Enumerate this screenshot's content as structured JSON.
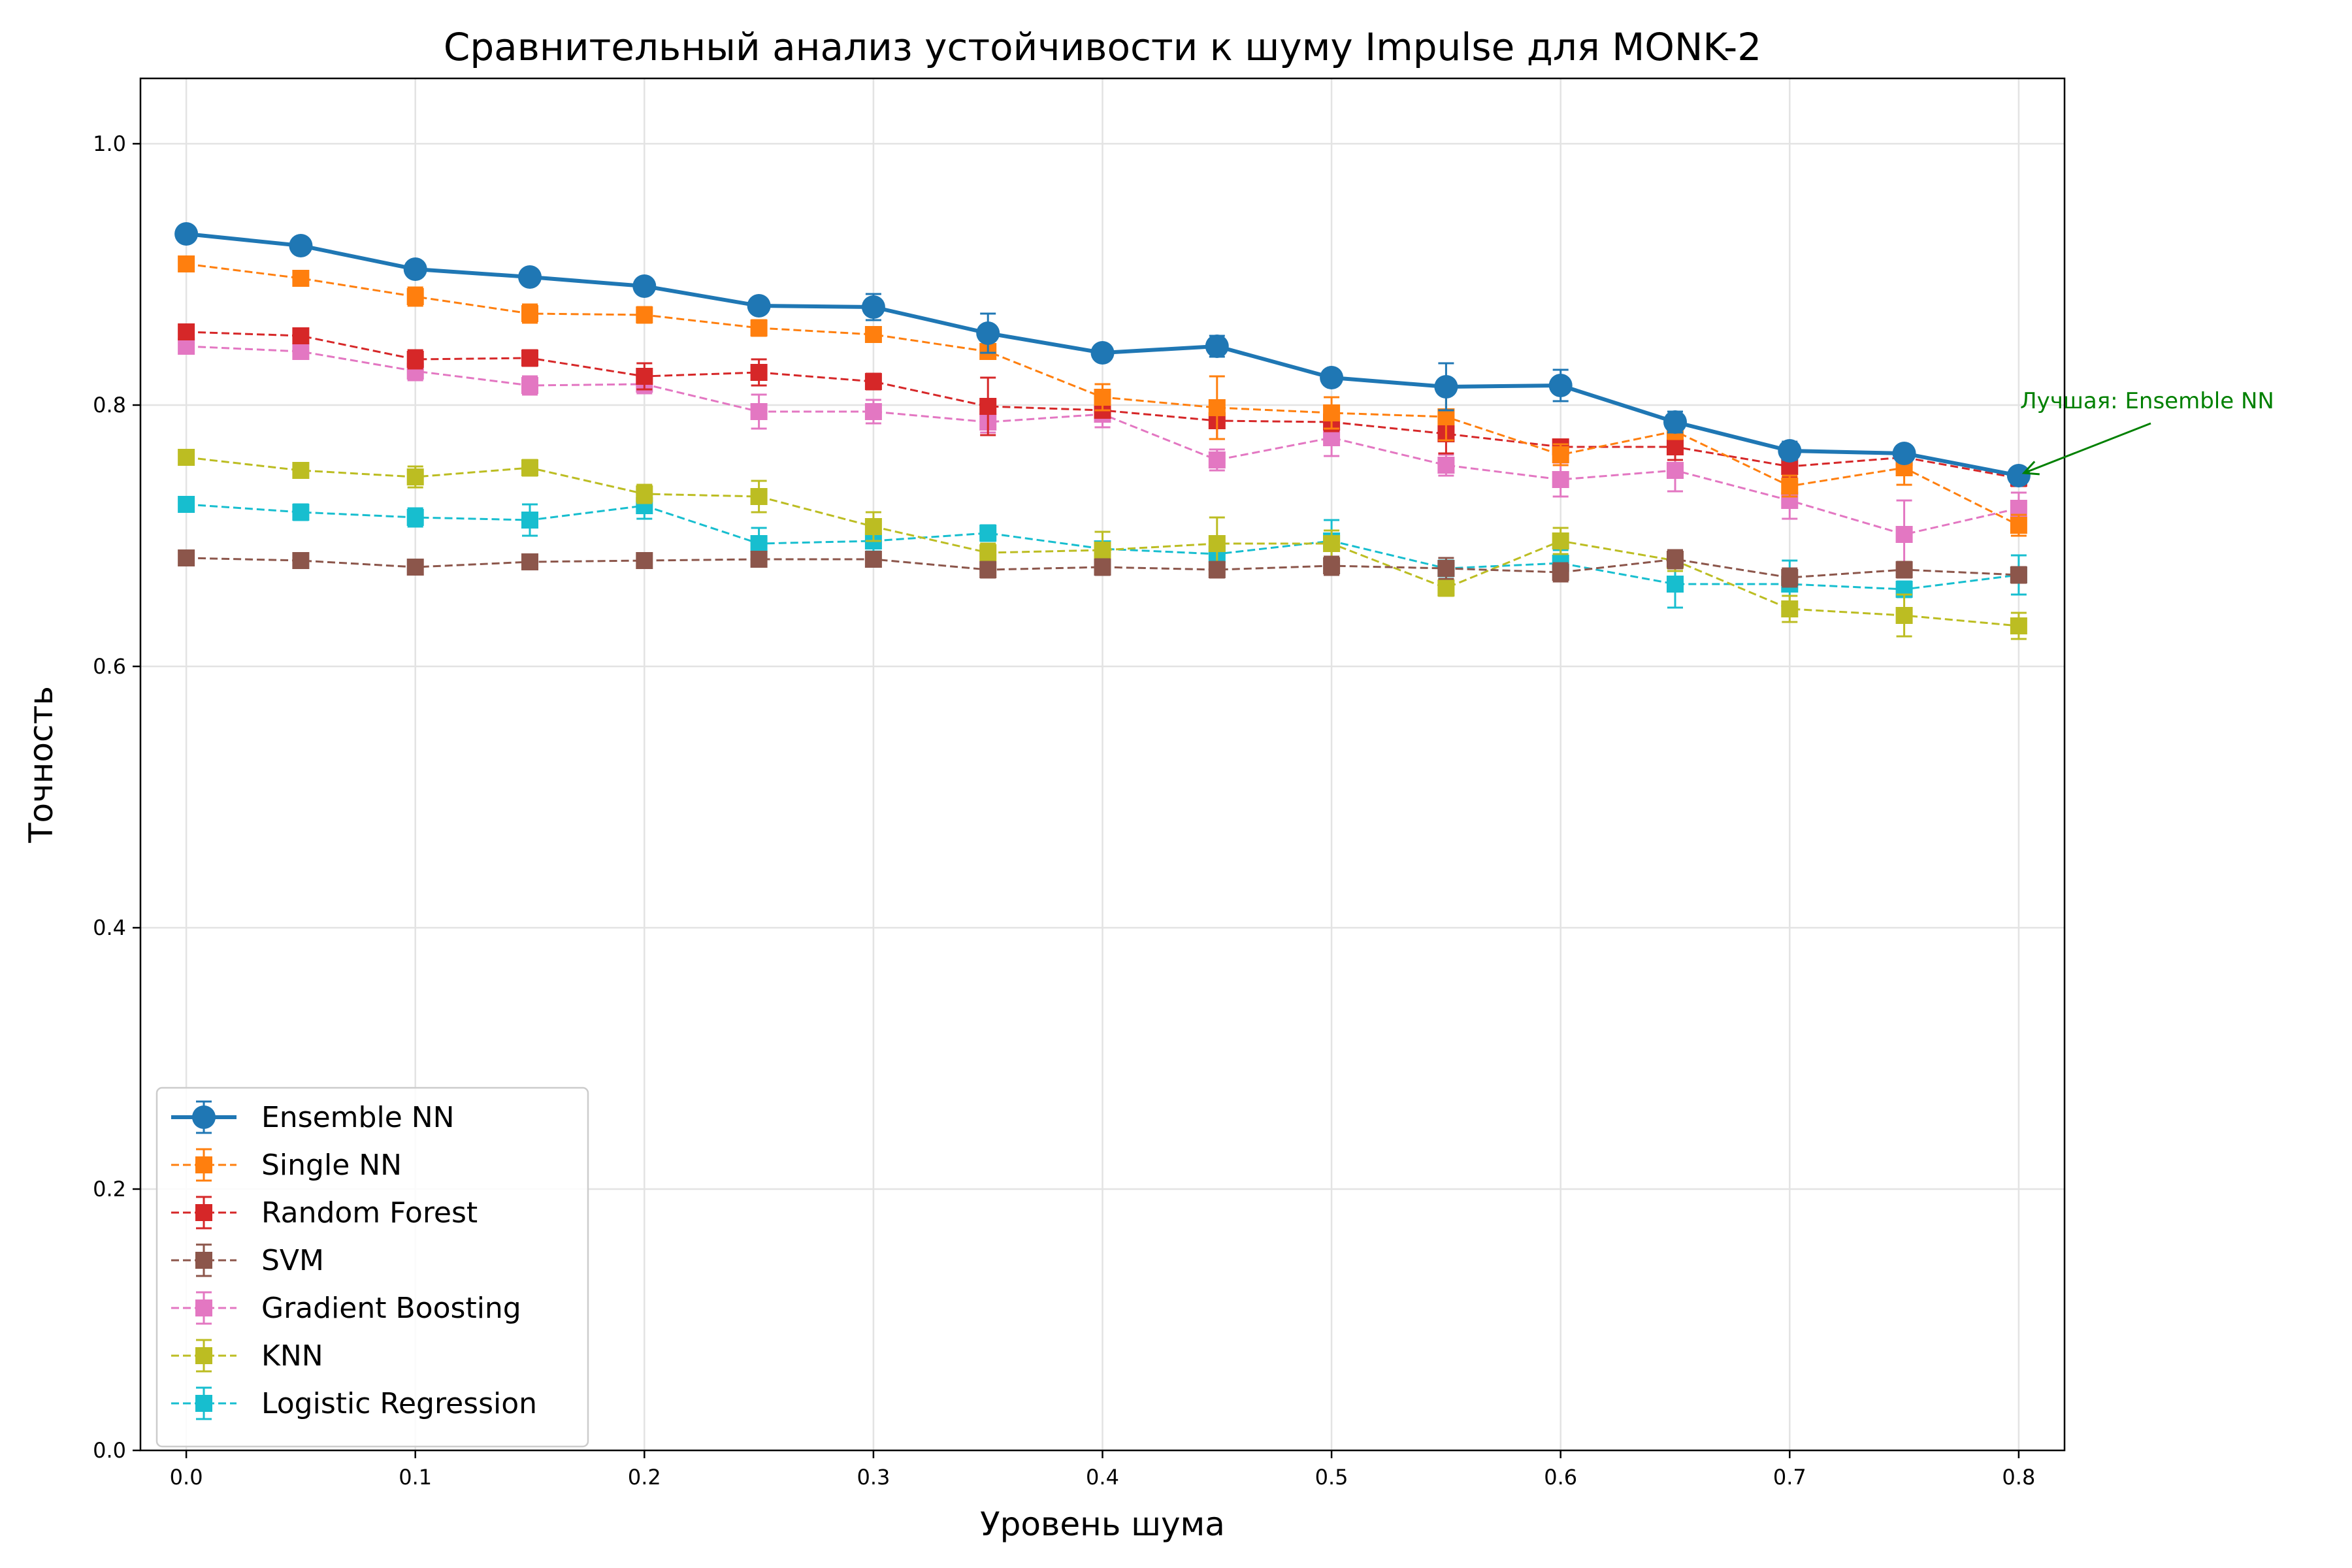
{
  "chart_data": {
    "type": "line",
    "title": "Сравнительный анализ устойчивости к шуму Impulse для MONK-2",
    "xlabel": "Уровень шума",
    "ylabel": "Точность",
    "xlim": [
      -0.02,
      0.82
    ],
    "ylim": [
      0.0,
      1.05
    ],
    "grid": true,
    "legend_position": "lower-left",
    "x_ticks": [
      "0.0",
      "0.1",
      "0.2",
      "0.3",
      "0.4",
      "0.5",
      "0.6",
      "0.7",
      "0.8"
    ],
    "y_ticks": [
      "0.0",
      "0.2",
      "0.4",
      "0.6",
      "0.8",
      "1.0"
    ],
    "x": [
      0.0,
      0.05,
      0.1,
      0.15,
      0.2,
      0.25,
      0.3,
      0.35,
      0.4,
      0.45,
      0.5,
      0.55,
      0.6,
      0.65,
      0.7,
      0.75,
      0.8
    ],
    "series": [
      {
        "name": "Ensemble NN",
        "color": "#1f77b4",
        "style": "solid",
        "marker": "circle",
        "values": [
          0.931,
          0.922,
          0.904,
          0.898,
          0.891,
          0.876,
          0.875,
          0.855,
          0.84,
          0.845,
          0.821,
          0.814,
          0.815,
          0.787,
          0.765,
          0.763,
          0.746
        ],
        "errors": [
          0.004,
          0.004,
          0.005,
          0.005,
          0.005,
          0.006,
          0.01,
          0.015,
          0.005,
          0.008,
          0.004,
          0.018,
          0.012,
          0.008,
          0.007,
          0.006,
          0.005
        ]
      },
      {
        "name": "Single NN",
        "color": "#ff7f0e",
        "style": "dashed",
        "marker": "square",
        "values": [
          0.908,
          0.897,
          0.883,
          0.87,
          0.869,
          0.859,
          0.854,
          0.841,
          0.806,
          0.798,
          0.794,
          0.791,
          0.762,
          0.78,
          0.738,
          0.752,
          0.708
        ],
        "errors": [
          0.005,
          0.004,
          0.007,
          0.007,
          0.006,
          0.006,
          0.005,
          0.005,
          0.01,
          0.024,
          0.012,
          0.018,
          0.008,
          0.006,
          0.008,
          0.013,
          0.008
        ]
      },
      {
        "name": "Random Forest",
        "color": "#d62728",
        "style": "dashed",
        "marker": "square",
        "values": [
          0.856,
          0.853,
          0.835,
          0.836,
          0.822,
          0.825,
          0.818,
          0.799,
          0.796,
          0.788,
          0.787,
          0.778,
          0.768,
          0.768,
          0.753,
          0.76,
          0.744
        ],
        "errors": [
          0.004,
          0.005,
          0.007,
          0.006,
          0.01,
          0.01,
          0.006,
          0.022,
          0.005,
          0.014,
          0.007,
          0.015,
          0.005,
          0.01,
          0.008,
          0.007,
          0.006
        ]
      },
      {
        "name": "SVM",
        "color": "#8c564b",
        "style": "dashed",
        "marker": "square",
        "values": [
          0.683,
          0.681,
          0.676,
          0.68,
          0.681,
          0.682,
          0.682,
          0.674,
          0.676,
          0.674,
          0.677,
          0.675,
          0.672,
          0.682,
          0.668,
          0.674,
          0.67
        ],
        "errors": [
          0.004,
          0.004,
          0.005,
          0.005,
          0.005,
          0.004,
          0.004,
          0.006,
          0.006,
          0.006,
          0.007,
          0.008,
          0.007,
          0.007,
          0.007,
          0.006,
          0.006
        ]
      },
      {
        "name": "Gradient Boosting",
        "color": "#e377c2",
        "style": "dashed",
        "marker": "square",
        "values": [
          0.845,
          0.841,
          0.826,
          0.815,
          0.816,
          0.795,
          0.795,
          0.787,
          0.793,
          0.758,
          0.775,
          0.754,
          0.743,
          0.75,
          0.727,
          0.701,
          0.721
        ],
        "errors": [
          0.004,
          0.005,
          0.007,
          0.007,
          0.007,
          0.013,
          0.009,
          0.008,
          0.01,
          0.008,
          0.014,
          0.008,
          0.013,
          0.016,
          0.014,
          0.026,
          0.012
        ]
      },
      {
        "name": "KNN",
        "color": "#bcbd22",
        "style": "dashed",
        "marker": "square",
        "values": [
          0.76,
          0.75,
          0.745,
          0.752,
          0.732,
          0.73,
          0.707,
          0.687,
          0.689,
          0.694,
          0.694,
          0.66,
          0.696,
          0.681,
          0.644,
          0.639,
          0.631
        ],
        "errors": [
          0.004,
          0.005,
          0.008,
          0.006,
          0.007,
          0.012,
          0.011,
          0.007,
          0.014,
          0.02,
          0.01,
          0.006,
          0.01,
          0.008,
          0.01,
          0.016,
          0.01
        ]
      },
      {
        "name": "Logistic Regression",
        "color": "#17becf",
        "style": "dashed",
        "marker": "square",
        "values": [
          0.724,
          0.718,
          0.714,
          0.712,
          0.723,
          0.694,
          0.696,
          0.702,
          0.69,
          0.686,
          0.696,
          0.675,
          0.679,
          0.663,
          0.663,
          0.659,
          0.67
        ],
        "errors": [
          0.004,
          0.006,
          0.007,
          0.012,
          0.01,
          0.012,
          0.008,
          0.006,
          0.005,
          0.01,
          0.016,
          0.006,
          0.01,
          0.018,
          0.018,
          0.006,
          0.015
        ]
      }
    ],
    "annotations": [
      {
        "text": "Лучшая: Ensemble NN",
        "color": "#008000",
        "target_series": "Ensemble NN",
        "target_x": 0.8
      }
    ]
  }
}
